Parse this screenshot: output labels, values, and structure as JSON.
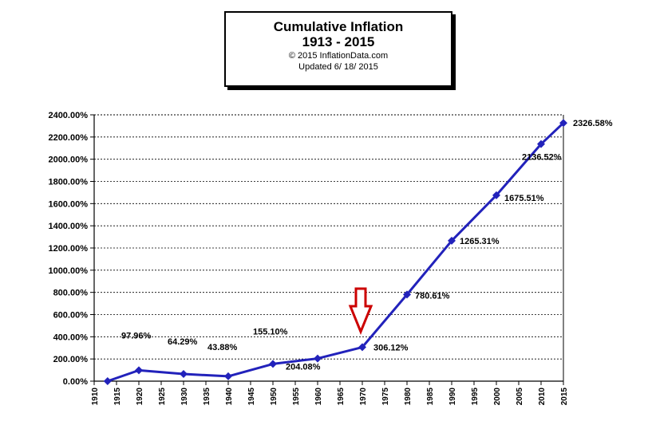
{
  "chart_data": {
    "type": "line",
    "title": "Cumulative Inflation",
    "subtitle": "1913 - 2015",
    "copyright": "© 2015 InflationData.com",
    "updated": "Updated  6/ 18/ 2015",
    "ylim": [
      0,
      2400
    ],
    "yticks": [
      "0.00%",
      "200.00%",
      "400.00%",
      "600.00%",
      "800.00%",
      "1000.00%",
      "1200.00%",
      "1400.00%",
      "1600.00%",
      "1800.00%",
      "2000.00%",
      "2200.00%",
      "2400.00%"
    ],
    "xlim": [
      1910,
      2015
    ],
    "xticks": [
      "1910",
      "1915",
      "1920",
      "1925",
      "1930",
      "1935",
      "1940",
      "1945",
      "1950",
      "1955",
      "1960",
      "1965",
      "1970",
      "1975",
      "1980",
      "1985",
      "1990",
      "1995",
      "2000",
      "2005",
      "2010",
      "2015"
    ],
    "grid": true,
    "line_color": "#2222bb",
    "arrow_color": "#cc0000",
    "series": [
      {
        "x": [
          1913,
          1920,
          1930,
          1940,
          1950,
          1960,
          1970,
          1980,
          1990,
          2000,
          2010,
          2015
        ],
        "values": [
          0,
          97.96,
          64.29,
          43.88,
          155.1,
          204.08,
          306.12,
          780.61,
          1265.31,
          1675.51,
          2136.52,
          2326.58
        ]
      }
    ],
    "data_labels": [
      "",
      "97.96%",
      "64.29%",
      "43.88%",
      "155.10%",
      "204.08%",
      "306.12%",
      "780.61%",
      "1265.31%",
      "1675.51%",
      "2136.52%",
      "2326.58%"
    ],
    "annotation": {
      "type": "arrow-down",
      "x": 1970
    }
  }
}
